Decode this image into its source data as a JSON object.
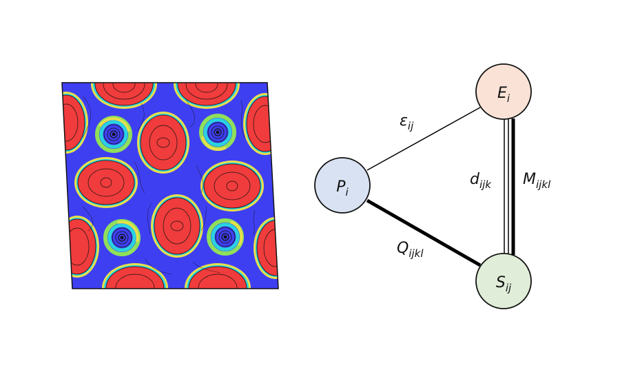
{
  "colors": {
    "field_background": "#3f3ff2",
    "field_peak": "#f03c3c",
    "field_ring_green": "#8fe05a",
    "field_ring_cyan": "#29d3e0",
    "field_ring_yellow": "#e8e04a",
    "contour_line": "#111111",
    "node_E": "#fae3d6",
    "node_P": "#d9e2f3",
    "node_S": "#e0edd8",
    "edge": "#000000"
  },
  "nodes": {
    "E": {
      "symbol": "E",
      "subscript": "i"
    },
    "P": {
      "symbol": "P",
      "subscript": "i"
    },
    "S": {
      "symbol": "S",
      "subscript": "ij"
    }
  },
  "edges": {
    "P_E": {
      "symbol": "ε",
      "subscript": "ij",
      "style": "thin"
    },
    "E_S_inner": {
      "symbol": "d",
      "subscript": "ijk",
      "style": "double"
    },
    "E_S_outer": {
      "symbol": "M",
      "subscript": "ijkl",
      "style": "thick"
    },
    "P_S": {
      "symbol": "Q",
      "subscript": "ijkl",
      "style": "thick"
    }
  }
}
